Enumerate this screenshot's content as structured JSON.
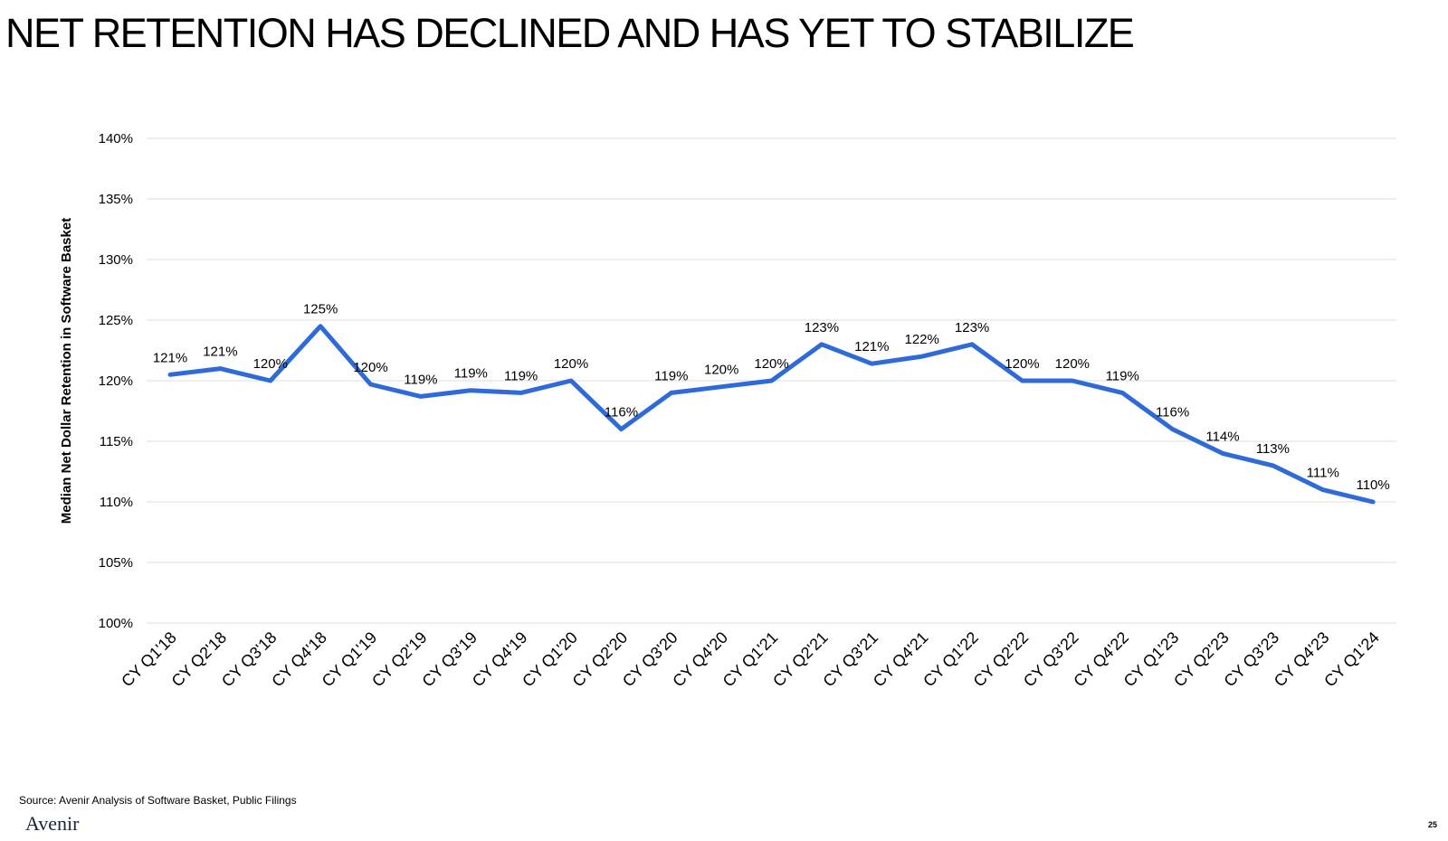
{
  "slide": {
    "title": "NET RETENTION HAS DECLINED AND HAS YET TO STABILIZE",
    "source": "Source: Avenir Analysis of Software Basket, Public Filings",
    "brand": "Avenir",
    "page_number": "25"
  },
  "colors": {
    "line": "#2f6ad9",
    "grid": "#dcdcdc",
    "text": "#000000"
  },
  "chart_data": {
    "type": "line",
    "title": "",
    "xlabel": "",
    "ylabel": "Median Net Dollar Retention in Software Basket",
    "ylim": [
      100,
      140
    ],
    "y_ticks": [
      100,
      105,
      110,
      115,
      120,
      125,
      130,
      135,
      140
    ],
    "y_tick_labels": [
      "100%",
      "105%",
      "110%",
      "115%",
      "120%",
      "125%",
      "130%",
      "135%",
      "140%"
    ],
    "grid": true,
    "legend": "none",
    "categories": [
      "CY Q1'18",
      "CY Q2'18",
      "CY Q3'18",
      "CY Q4'18",
      "CY Q1'19",
      "CY Q2'19",
      "CY Q3'19",
      "CY Q4'19",
      "CY Q1'20",
      "CY Q2'20",
      "CY Q3'20",
      "CY Q4'20",
      "CY Q1'21",
      "CY Q2'21",
      "CY Q3'21",
      "CY Q4'21",
      "CY Q1'22",
      "CY Q2'22",
      "CY Q3'22",
      "CY Q4'22",
      "CY Q1'23",
      "CY Q2'23",
      "CY Q3'23",
      "CY Q4'23",
      "CY Q1'24"
    ],
    "series": [
      {
        "values": [
          120.5,
          121.0,
          120.0,
          124.5,
          119.7,
          118.7,
          119.2,
          119.0,
          120.0,
          116.0,
          119.0,
          119.5,
          120.0,
          123.0,
          121.4,
          122.0,
          123.0,
          120.0,
          120.0,
          119.0,
          116.0,
          114.0,
          113.0,
          111.0,
          110.0
        ],
        "data_labels": [
          "121%",
          "121%",
          "120%",
          "125%",
          "120%",
          "119%",
          "119%",
          "119%",
          "120%",
          "116%",
          "119%",
          "120%",
          "120%",
          "123%",
          "121%",
          "122%",
          "123%",
          "120%",
          "120%",
          "119%",
          "116%",
          "114%",
          "113%",
          "111%",
          "110%"
        ]
      }
    ]
  }
}
